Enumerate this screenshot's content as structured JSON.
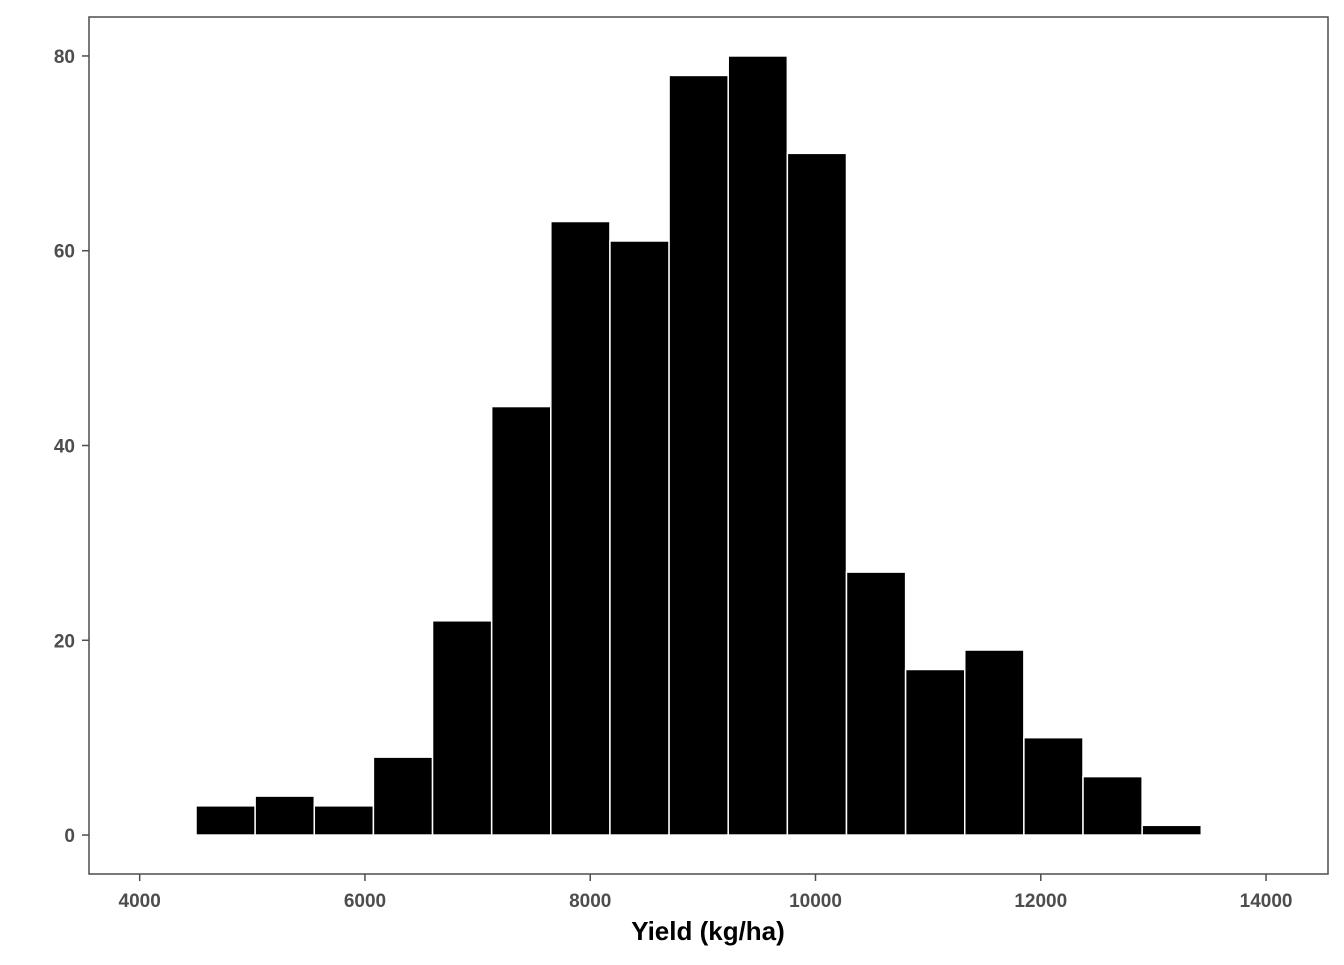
{
  "chart_data": {
    "type": "bar",
    "title": "",
    "xlabel": "Yield (kg/ha)",
    "ylabel": "",
    "xlim": [
      3550,
      14550
    ],
    "ylim": [
      -4,
      84
    ],
    "bin_width": 525,
    "bins": [
      {
        "start": 4500,
        "end": 5025,
        "count": 3
      },
      {
        "start": 5025,
        "end": 5550,
        "count": 4
      },
      {
        "start": 5550,
        "end": 6075,
        "count": 3
      },
      {
        "start": 6075,
        "end": 6600,
        "count": 8
      },
      {
        "start": 6600,
        "end": 7125,
        "count": 22
      },
      {
        "start": 7125,
        "end": 7650,
        "count": 44
      },
      {
        "start": 7650,
        "end": 8175,
        "count": 63
      },
      {
        "start": 8175,
        "end": 8700,
        "count": 61
      },
      {
        "start": 8700,
        "end": 9225,
        "count": 78
      },
      {
        "start": 9225,
        "end": 9750,
        "count": 80
      },
      {
        "start": 9750,
        "end": 10275,
        "count": 70
      },
      {
        "start": 10275,
        "end": 10800,
        "count": 27
      },
      {
        "start": 10800,
        "end": 11325,
        "count": 17
      },
      {
        "start": 11325,
        "end": 11850,
        "count": 19
      },
      {
        "start": 11850,
        "end": 12375,
        "count": 10
      },
      {
        "start": 12375,
        "end": 12900,
        "count": 6
      },
      {
        "start": 12900,
        "end": 13425,
        "count": 1
      }
    ],
    "x_ticks": [
      4000,
      6000,
      8000,
      10000,
      12000,
      14000
    ],
    "x_tick_labels": [
      "4000",
      "6000",
      "8000",
      "10000",
      "12000",
      "14000"
    ],
    "y_ticks": [
      0,
      20,
      40,
      60,
      80
    ],
    "y_tick_labels": [
      "0",
      "20",
      "40",
      "60",
      "80"
    ],
    "grid": false,
    "legend": "none",
    "colors": {
      "bar_fill": "#000000",
      "bar_outline": "#ffffff",
      "panel_border": "#4d4d4d",
      "tick_text": "#4d4d4d",
      "axis_title": "#000000"
    }
  }
}
